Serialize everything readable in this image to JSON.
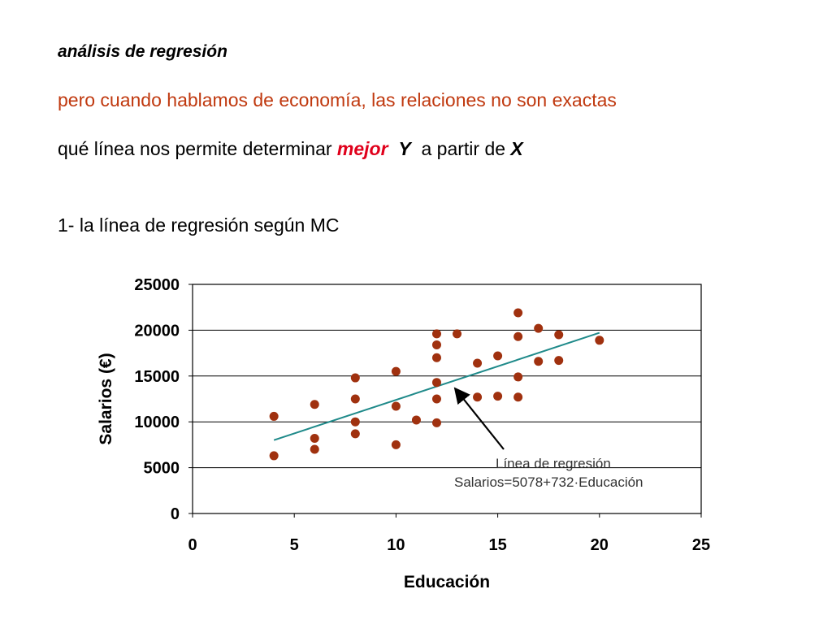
{
  "heading": "análisis de regresión",
  "subtitle": "pero cuando hablamos de economía, las relaciones no son exactas",
  "question": {
    "part1": "qué línea nos permite determinar",
    "word_best": "mejor",
    "word_y": "Y",
    "part2": "a partir de",
    "word_x": "X"
  },
  "item1": "1- la línea de regresión según MC",
  "colors": {
    "subtitle": "#c0390f",
    "highlight": "#e0001b",
    "points": "#a0310f",
    "regression_line": "#1f8a8a"
  },
  "chart_data": {
    "type": "scatter",
    "xlabel": "Educación",
    "ylabel": "Salarios (€)",
    "xlim": [
      0,
      25
    ],
    "ylim": [
      0,
      25000
    ],
    "xticks": [
      0,
      5,
      10,
      15,
      20,
      25
    ],
    "yticks": [
      0,
      5000,
      10000,
      15000,
      20000,
      25000
    ],
    "grid": "horizontal",
    "series": [
      {
        "x": [
          4,
          4,
          6,
          6,
          6,
          8,
          8,
          8,
          8,
          10,
          10,
          10,
          11,
          12,
          12,
          12,
          12,
          12,
          12,
          13,
          14,
          14,
          15,
          15,
          16,
          16,
          16,
          16,
          17,
          17,
          18,
          18,
          20
        ],
        "y": [
          10600,
          6300,
          11900,
          8200,
          7000,
          14800,
          12500,
          10000,
          8700,
          15500,
          11700,
          7500,
          10200,
          18400,
          17000,
          14300,
          12500,
          9900,
          19600,
          19600,
          16400,
          12700,
          17200,
          12800,
          21900,
          19300,
          14900,
          12700,
          20200,
          16600,
          19500,
          16700,
          18900
        ]
      }
    ],
    "regression": {
      "intercept": 5078,
      "slope": 732,
      "x_range": [
        4,
        20
      ]
    },
    "annotation": {
      "line1": "Línea de regresión",
      "line2": "Salarios=5078+732·Educación"
    }
  }
}
